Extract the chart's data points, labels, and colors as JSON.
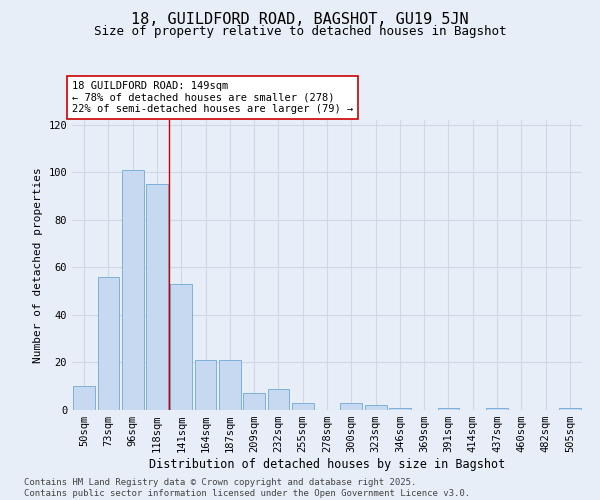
{
  "title": "18, GUILDFORD ROAD, BAGSHOT, GU19 5JN",
  "subtitle": "Size of property relative to detached houses in Bagshot",
  "xlabel": "Distribution of detached houses by size in Bagshot",
  "ylabel": "Number of detached properties",
  "bar_labels": [
    "50sqm",
    "73sqm",
    "96sqm",
    "118sqm",
    "141sqm",
    "164sqm",
    "187sqm",
    "209sqm",
    "232sqm",
    "255sqm",
    "278sqm",
    "300sqm",
    "323sqm",
    "346sqm",
    "369sqm",
    "391sqm",
    "414sqm",
    "437sqm",
    "460sqm",
    "482sqm",
    "505sqm"
  ],
  "bar_values": [
    10,
    56,
    101,
    95,
    53,
    21,
    21,
    7,
    9,
    3,
    0,
    3,
    2,
    1,
    0,
    1,
    0,
    1,
    0,
    0,
    1
  ],
  "bar_color": "#c6d9f0",
  "bar_edge_color": "#6fa8d6",
  "background_color": "#e8eef7",
  "grid_color": "#d0d8e8",
  "annotation_text": "18 GUILDFORD ROAD: 149sqm\n← 78% of detached houses are smaller (278)\n22% of semi-detached houses are larger (79) →",
  "annotation_box_color": "#ffffff",
  "annotation_box_edge_color": "#cc0000",
  "vline_color": "#cc0000",
  "vline_x_index": 3.5,
  "ylim": [
    0,
    122
  ],
  "yticks": [
    0,
    20,
    40,
    60,
    80,
    100,
    120
  ],
  "footer_text": "Contains HM Land Registry data © Crown copyright and database right 2025.\nContains public sector information licensed under the Open Government Licence v3.0.",
  "title_fontsize": 11,
  "subtitle_fontsize": 9,
  "xlabel_fontsize": 8.5,
  "ylabel_fontsize": 8,
  "tick_fontsize": 7.5,
  "annotation_fontsize": 7.5,
  "footer_fontsize": 6.5
}
